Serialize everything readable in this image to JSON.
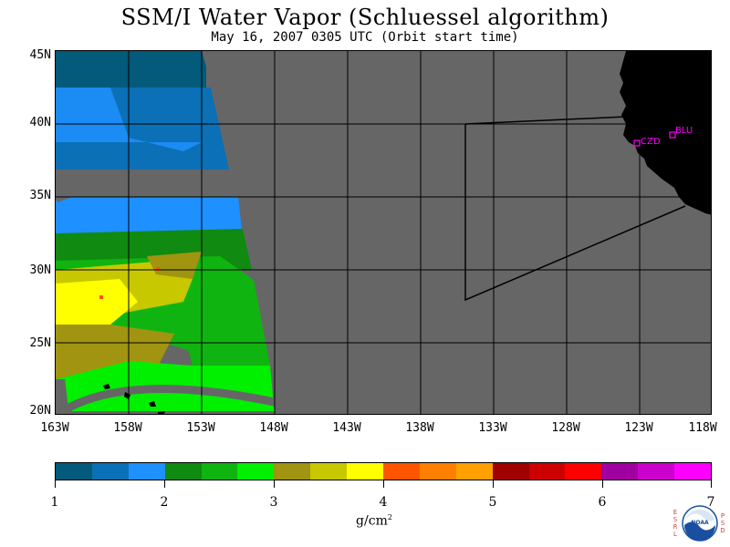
{
  "title": "SSM/I Water Vapor (Schluessel algorithm)",
  "subtitle": "May 16, 2007  0305 UTC  (Orbit start time)",
  "map": {
    "lat_labels": [
      "45N",
      "40N",
      "35N",
      "30N",
      "25N",
      "20N"
    ],
    "lon_labels": [
      "163W",
      "158W",
      "153W",
      "148W",
      "143W",
      "138W",
      "133W",
      "128W",
      "123W",
      "118W"
    ],
    "stations": [
      {
        "code": "CZD",
        "lat": 38.6,
        "lon": -123.2
      },
      {
        "code": "BLU",
        "lat": 39.3,
        "lon": -120.8
      }
    ],
    "colors": {
      "no_data": "#666666",
      "land": "#000000",
      "grid": "#000000",
      "station": "#ff00ff"
    }
  },
  "colorbar": {
    "colors": [
      "#035a7a",
      "#0b70b6",
      "#1e90ff",
      "#108a10",
      "#10b410",
      "#00f000",
      "#a09410",
      "#c8c800",
      "#ffff00",
      "#ff5500",
      "#ff7f00",
      "#ffa000",
      "#a00000",
      "#cc0000",
      "#ff0000",
      "#a000a0",
      "#cc00cc",
      "#ff00ff"
    ],
    "tick_labels": [
      "1",
      "2",
      "3",
      "4",
      "5",
      "6",
      "7"
    ],
    "units": "g/cm",
    "units_exp": "2"
  },
  "logo": {
    "left_letters": "ESRL",
    "right_letters": "PSD",
    "center_text": "NOAA"
  }
}
